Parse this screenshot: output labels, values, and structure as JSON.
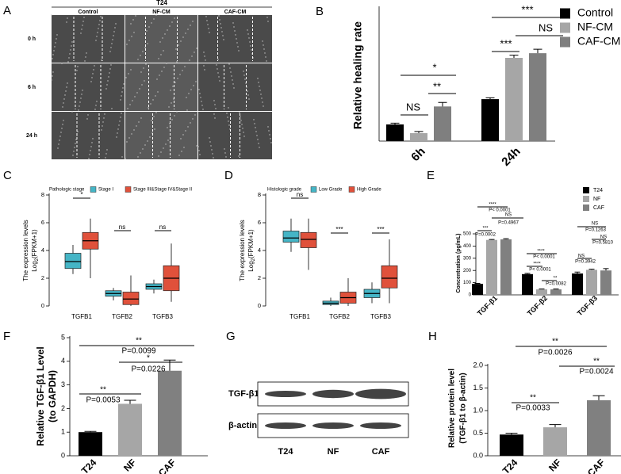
{
  "panel_a": {
    "label": "A",
    "title": "T24",
    "columns": [
      "Control",
      "NF-CM",
      "CAF-CM"
    ],
    "rows": [
      "0 h",
      "6 h",
      "24 h"
    ]
  },
  "panel_g": {
    "label": "G",
    "rows": [
      "TGF-β1",
      "β-actin"
    ],
    "columns": [
      "T24",
      "NF",
      "CAF"
    ]
  },
  "chart_data": [
    {
      "type": "bar",
      "label": "B",
      "ylabel": [
        "Relative healing rate"
      ],
      "categories": [
        "6h",
        "24h"
      ],
      "ylim": [
        0,
        1.0
      ],
      "series": [
        {
          "name": "Control",
          "color": "#000000",
          "values": [
            0.125,
            0.315
          ],
          "errors": [
            0.01,
            0.01
          ]
        },
        {
          "name": "NF-CM",
          "color": "#a6a6a6",
          "values": [
            0.06,
            0.625
          ],
          "errors": [
            0.012,
            0.02
          ]
        },
        {
          "name": "CAF-CM",
          "color": "#7f7f7f",
          "values": [
            0.26,
            0.66
          ],
          "errors": [
            0.03,
            0.03
          ]
        }
      ],
      "annotations": [
        "NS",
        "*",
        "**",
        "***",
        "NS",
        "***"
      ]
    },
    {
      "type": "box",
      "label": "C",
      "legend_title": "Pathologic stage",
      "ylabel": [
        "The expression levels"
      ],
      "ylabel_log": "Log",
      "ylabel_sub": "2",
      "ylabel_rest": "(FPKM+1)",
      "categories": [
        "TGFB1",
        "TGFB2",
        "TGFB3"
      ],
      "ylim": [
        0,
        8
      ],
      "yticks": [
        0,
        2,
        4,
        6,
        8
      ],
      "series": [
        {
          "name": "Stage I",
          "color": "#45b5c6",
          "boxes": [
            [
              2.3,
              2.7,
              3.2,
              3.8,
              4.4
            ],
            [
              0.4,
              0.7,
              0.9,
              1.1,
              1.3
            ],
            [
              0.9,
              1.2,
              1.4,
              1.6,
              1.9
            ]
          ]
        },
        {
          "name": "Stage III&Stage IV&Stage II",
          "color": "#e0513b",
          "boxes": [
            [
              2.0,
              4.1,
              4.7,
              5.3,
              6.3
            ],
            [
              0,
              0.1,
              0.5,
              1.0,
              2.2
            ],
            [
              0.3,
              1.1,
              2.0,
              2.9,
              4.5
            ]
          ]
        }
      ],
      "annotations": [
        "*",
        "ns",
        "ns"
      ]
    },
    {
      "type": "box",
      "label": "D",
      "legend_title": "Histologic grade",
      "ylabel": [
        "The expression levels"
      ],
      "ylabel_log": "Log",
      "ylabel_sub": "2",
      "ylabel_rest": "(FPKM+1)",
      "categories": [
        "TGFB1",
        "TGFB2",
        "TGFB3"
      ],
      "ylim": [
        0,
        8
      ],
      "yticks": [
        0,
        2,
        4,
        6,
        8
      ],
      "series": [
        {
          "name": "Low Grade",
          "color": "#45b5c6",
          "boxes": [
            [
              3.9,
              4.6,
              4.9,
              5.4,
              6.3
            ],
            [
              0,
              0.1,
              0.2,
              0.35,
              0.6
            ],
            [
              0.2,
              0.6,
              0.9,
              1.2,
              1.7
            ]
          ]
        },
        {
          "name": "High Grade",
          "color": "#e0513b",
          "boxes": [
            [
              2.6,
              4.2,
              4.8,
              5.3,
              6.3
            ],
            [
              0,
              0.2,
              0.6,
              1.0,
              2.0
            ],
            [
              0.2,
              1.3,
              2.0,
              2.9,
              4.8
            ]
          ]
        }
      ],
      "annotations": [
        "ns",
        "***",
        "***"
      ]
    },
    {
      "type": "bar",
      "label": "E",
      "ylabel": [
        "Concentration (pg/mL)"
      ],
      "categories": [
        "TGF-β1",
        "TGF-β2",
        "TGF-β3"
      ],
      "ylim": [
        0,
        500
      ],
      "yticks": [
        0,
        100,
        200,
        300,
        400,
        500
      ],
      "series": [
        {
          "name": "T24",
          "color": "#000000",
          "values": [
            90,
            170,
            175
          ],
          "errors": [
            4,
            6,
            12
          ]
        },
        {
          "name": "NF",
          "color": "#a6a6a6",
          "values": [
            450,
            45,
            205
          ],
          "errors": [
            4,
            3,
            5
          ]
        },
        {
          "name": "CAF",
          "color": "#808080",
          "values": [
            455,
            45,
            200
          ],
          "errors": [
            5,
            3,
            15
          ]
        }
      ],
      "annotations": [
        "****",
        "P< 0.0001",
        "NS",
        "P=0.4967",
        "***",
        "P=0.0002",
        "****",
        "P< 0.0001",
        "****",
        "P< 0.0001",
        "**",
        "P=0.0082",
        "NS",
        "P=0.1263",
        "NS",
        "P=0.5810",
        "NS",
        "P=0.3942"
      ]
    },
    {
      "type": "bar",
      "label": "F",
      "ylabel": [
        "Relative TGF-β1 Level",
        "(to GAPDH)"
      ],
      "categories": [
        "T24",
        "NF",
        "CAF"
      ],
      "ylim": [
        0,
        5
      ],
      "yticks": [
        0,
        1,
        2,
        3,
        4,
        5
      ],
      "values": [
        1.0,
        2.2,
        3.6
      ],
      "errors": [
        0.03,
        0.15,
        0.45
      ],
      "colors": [
        "#000000",
        "#a6a6a6",
        "#808080"
      ],
      "annotations": [
        "**",
        "P=0.0099",
        "*",
        "P=0.0226",
        "**",
        "P=0.0053"
      ]
    },
    {
      "type": "bar",
      "label": "H",
      "ylabel": [
        "Relative protein level",
        "(TGF-β1 to β-actin)"
      ],
      "categories": [
        "T24",
        "NF",
        "CAF"
      ],
      "ylim": [
        0,
        2.0
      ],
      "yticks": [
        {
          "value": 0,
          "label": "0.0"
        },
        0.5,
        {
          "value": 1,
          "label": "1.0"
        },
        1.5,
        {
          "value": 2,
          "label": "2.0"
        }
      ],
      "values": [
        0.47,
        0.63,
        1.23
      ],
      "errors": [
        0.03,
        0.06,
        0.1
      ],
      "colors": [
        "#000000",
        "#a6a6a6",
        "#808080"
      ],
      "annotations": [
        "**",
        "P=0.0026",
        "**",
        "P=0.0024",
        "**",
        "P=0.0033"
      ]
    }
  ]
}
